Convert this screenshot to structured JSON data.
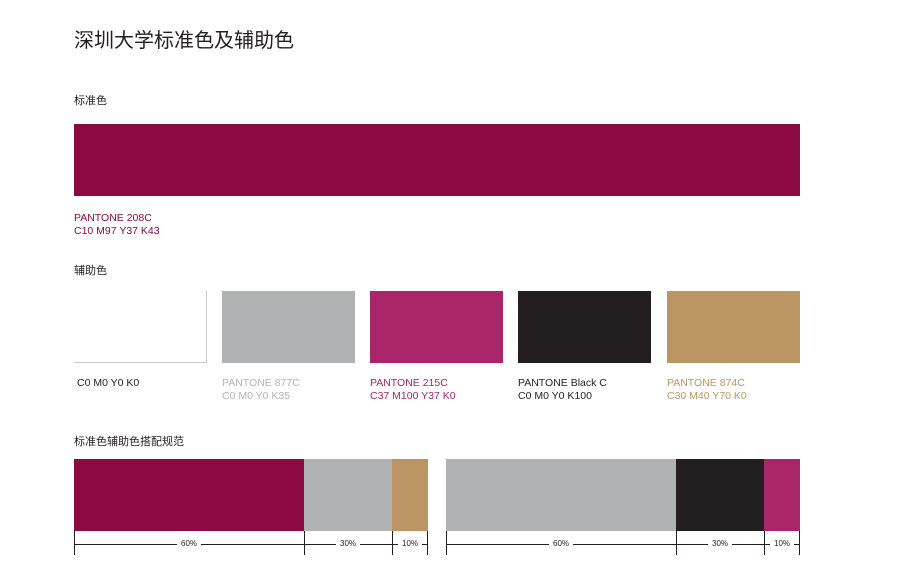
{
  "title": "深圳大学标准色及辅助色",
  "standard": {
    "label": "标准色",
    "color": "#8b0a42",
    "pantone": "PANTONE 208C",
    "cmyk": "C10 M97 Y37 K43"
  },
  "auxiliary": {
    "label": "辅助色",
    "swatches": [
      {
        "color": "#ffffff",
        "pantone": "",
        "cmyk": "C0 M0 Y0 K0",
        "text_color": "#231f20"
      },
      {
        "color": "#b1b2b4",
        "pantone": "PANTONE 877C",
        "cmyk": "C0 M0 Y0 K35",
        "text_color": "#b3b3b3"
      },
      {
        "color": "#a8256a",
        "pantone": "PANTONE 215C",
        "cmyk": "C37 M100 Y37 K0",
        "text_color": "#a8256a"
      },
      {
        "color": "#231f20",
        "pantone": "PANTONE Black C",
        "cmyk": "C0 M0 Y0 K100",
        "text_color": "#231f20"
      },
      {
        "color": "#bb9664",
        "pantone": "PANTONE 874C",
        "cmyk": "C30 M40 Y70 K0",
        "text_color": "#bb9664"
      }
    ]
  },
  "combination": {
    "label": "标准色辅助色搭配规范",
    "groups": [
      {
        "segments": [
          {
            "color": "#8b0a42",
            "percent": "60%"
          },
          {
            "color": "#b1b2b4",
            "percent": "30%"
          },
          {
            "color": "#bb9664",
            "percent": "10%"
          }
        ]
      },
      {
        "segments": [
          {
            "color": "#b1b2b4",
            "percent": "60%"
          },
          {
            "color": "#231f20",
            "percent": "30%"
          },
          {
            "color": "#a8256a",
            "percent": "10%"
          }
        ]
      }
    ]
  }
}
